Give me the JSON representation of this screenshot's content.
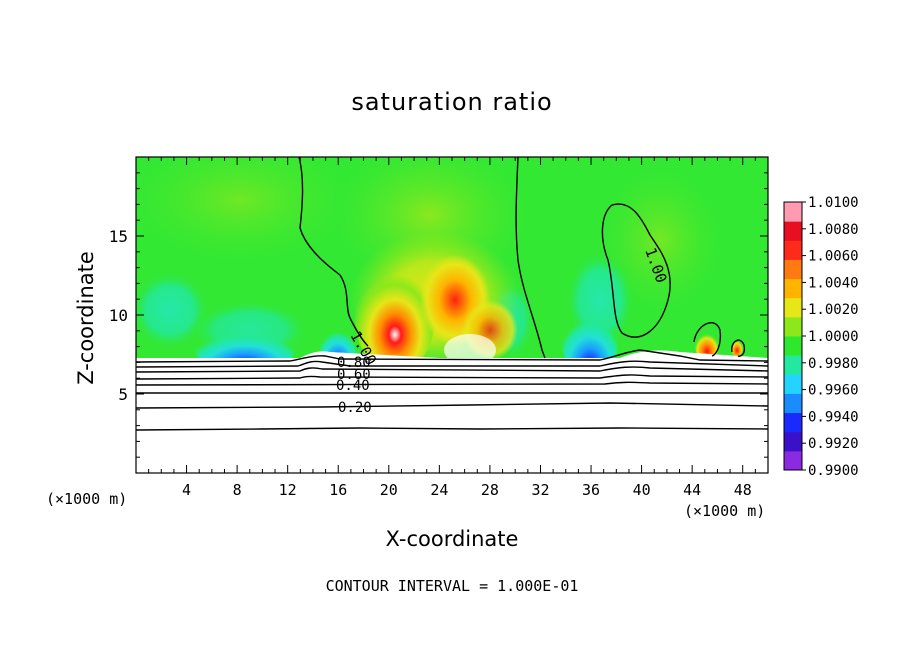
{
  "chart_data": {
    "type": "heatmap",
    "title": "saturation ratio",
    "xlabel": "X-coordinate",
    "ylabel": "Z-coordinate",
    "x_unit_left": "(×1000 m)",
    "x_unit_right": "(×1000 m)",
    "footer": "CONTOUR INTERVAL = 1.000E-01",
    "xlim": [
      0,
      50
    ],
    "ylim": [
      0,
      20
    ],
    "x_ticks": [
      "4",
      "8",
      "12",
      "16",
      "20",
      "24",
      "28",
      "32",
      "36",
      "40",
      "44",
      "48"
    ],
    "y_ticks": [
      "5",
      "10",
      "15"
    ],
    "colorbar": {
      "min": 0.99,
      "max": 1.01,
      "labels": [
        "1.0100",
        "1.0080",
        "1.0060",
        "1.0040",
        "1.0020",
        "1.0000",
        "0.9980",
        "0.9960",
        "0.9940",
        "0.9920",
        "0.9900"
      ],
      "colors": [
        "#8a2be2",
        "#3a10c8",
        "#1a2aff",
        "#1a8cff",
        "#22d4ff",
        "#22e8a0",
        "#2ee82e",
        "#8ce81a",
        "#e6e619",
        "#ffb400",
        "#ff7a10",
        "#ff2a1a",
        "#e81020",
        "#ff9ab0"
      ]
    },
    "contour_labels": [
      "1.00",
      "1.00",
      "0.80",
      "0.60",
      "0.40",
      "0.20"
    ],
    "colors": {
      "background_field": "#33e833",
      "contour_line": "#000000"
    }
  }
}
